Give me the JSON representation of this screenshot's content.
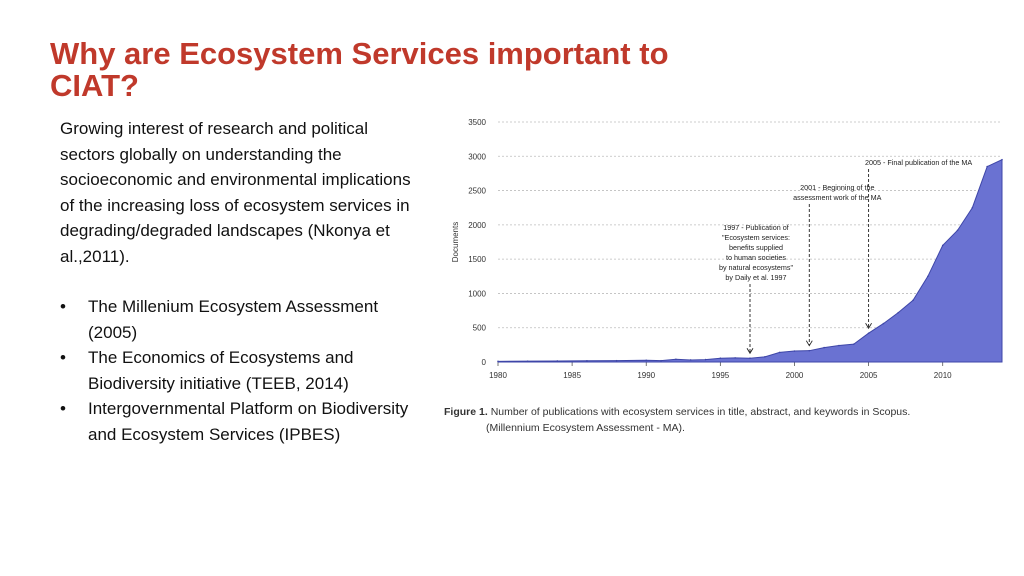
{
  "slide": {
    "title": "Why are Ecosystem Services important to CIAT?",
    "intro": "Growing interest of research and political sectors globally on understanding the socioeconomic and environmental implications of the increasing loss of ecosystem services in degrading/degraded landscapes (Nkonya et al.,2011).",
    "bullet_symbol": "•",
    "bullets": [
      "The Millenium Ecosystem Assessment (2005)",
      "The Economics of Ecosystems and Biodiversity initiative (TEEB, 2014)",
      "Intergovernmental Platform on Biodiversity and Ecosystem Services (IPBES)"
    ]
  },
  "caption": {
    "label": "Figure 1.",
    "line1": "Number of publications with ecosystem services in title, abstract, and keywords in Scopus.",
    "line2": "(Millennium Ecosystem Assessment - MA)."
  },
  "chart_data": {
    "type": "area",
    "title": "",
    "xlabel": "",
    "ylabel": "Documents",
    "xlim": [
      1980,
      2014
    ],
    "ylim": [
      0,
      3500
    ],
    "xticks": [
      1980,
      1985,
      1990,
      1995,
      2000,
      2005,
      2010
    ],
    "yticks": [
      0,
      500,
      1000,
      1500,
      2000,
      2500,
      3000,
      3500
    ],
    "grid": true,
    "fill_color": "#6a72d2",
    "stroke_color": "#3e46a8",
    "series": [
      {
        "x": [
          1980,
          1982,
          1984,
          1986,
          1988,
          1990,
          1991,
          1992,
          1993,
          1994,
          1995,
          1996,
          1997,
          1998,
          1999,
          2000,
          2001,
          2002,
          2003,
          2004,
          2005,
          2006,
          2007,
          2008,
          2009,
          2010,
          2011,
          2012,
          2013,
          2014
        ],
        "y": [
          10,
          12,
          15,
          18,
          20,
          25,
          20,
          40,
          30,
          35,
          55,
          60,
          55,
          75,
          140,
          160,
          165,
          210,
          240,
          260,
          420,
          560,
          720,
          900,
          1250,
          1700,
          1920,
          2250,
          2850,
          2950
        ]
      }
    ],
    "annotations": [
      {
        "x": 1997,
        "text": [
          "1997 - Publication of",
          "\"Ecosystem services:",
          "benefits supplied",
          "to human societies",
          "by natural ecosystems\"",
          "by Daily et al. 1997"
        ]
      },
      {
        "x": 2001,
        "text": [
          "2001 - Beginning of the",
          "assessment work of the MA"
        ]
      },
      {
        "x": 2005,
        "text": [
          "2005 - Final publication of the MA"
        ]
      }
    ]
  }
}
